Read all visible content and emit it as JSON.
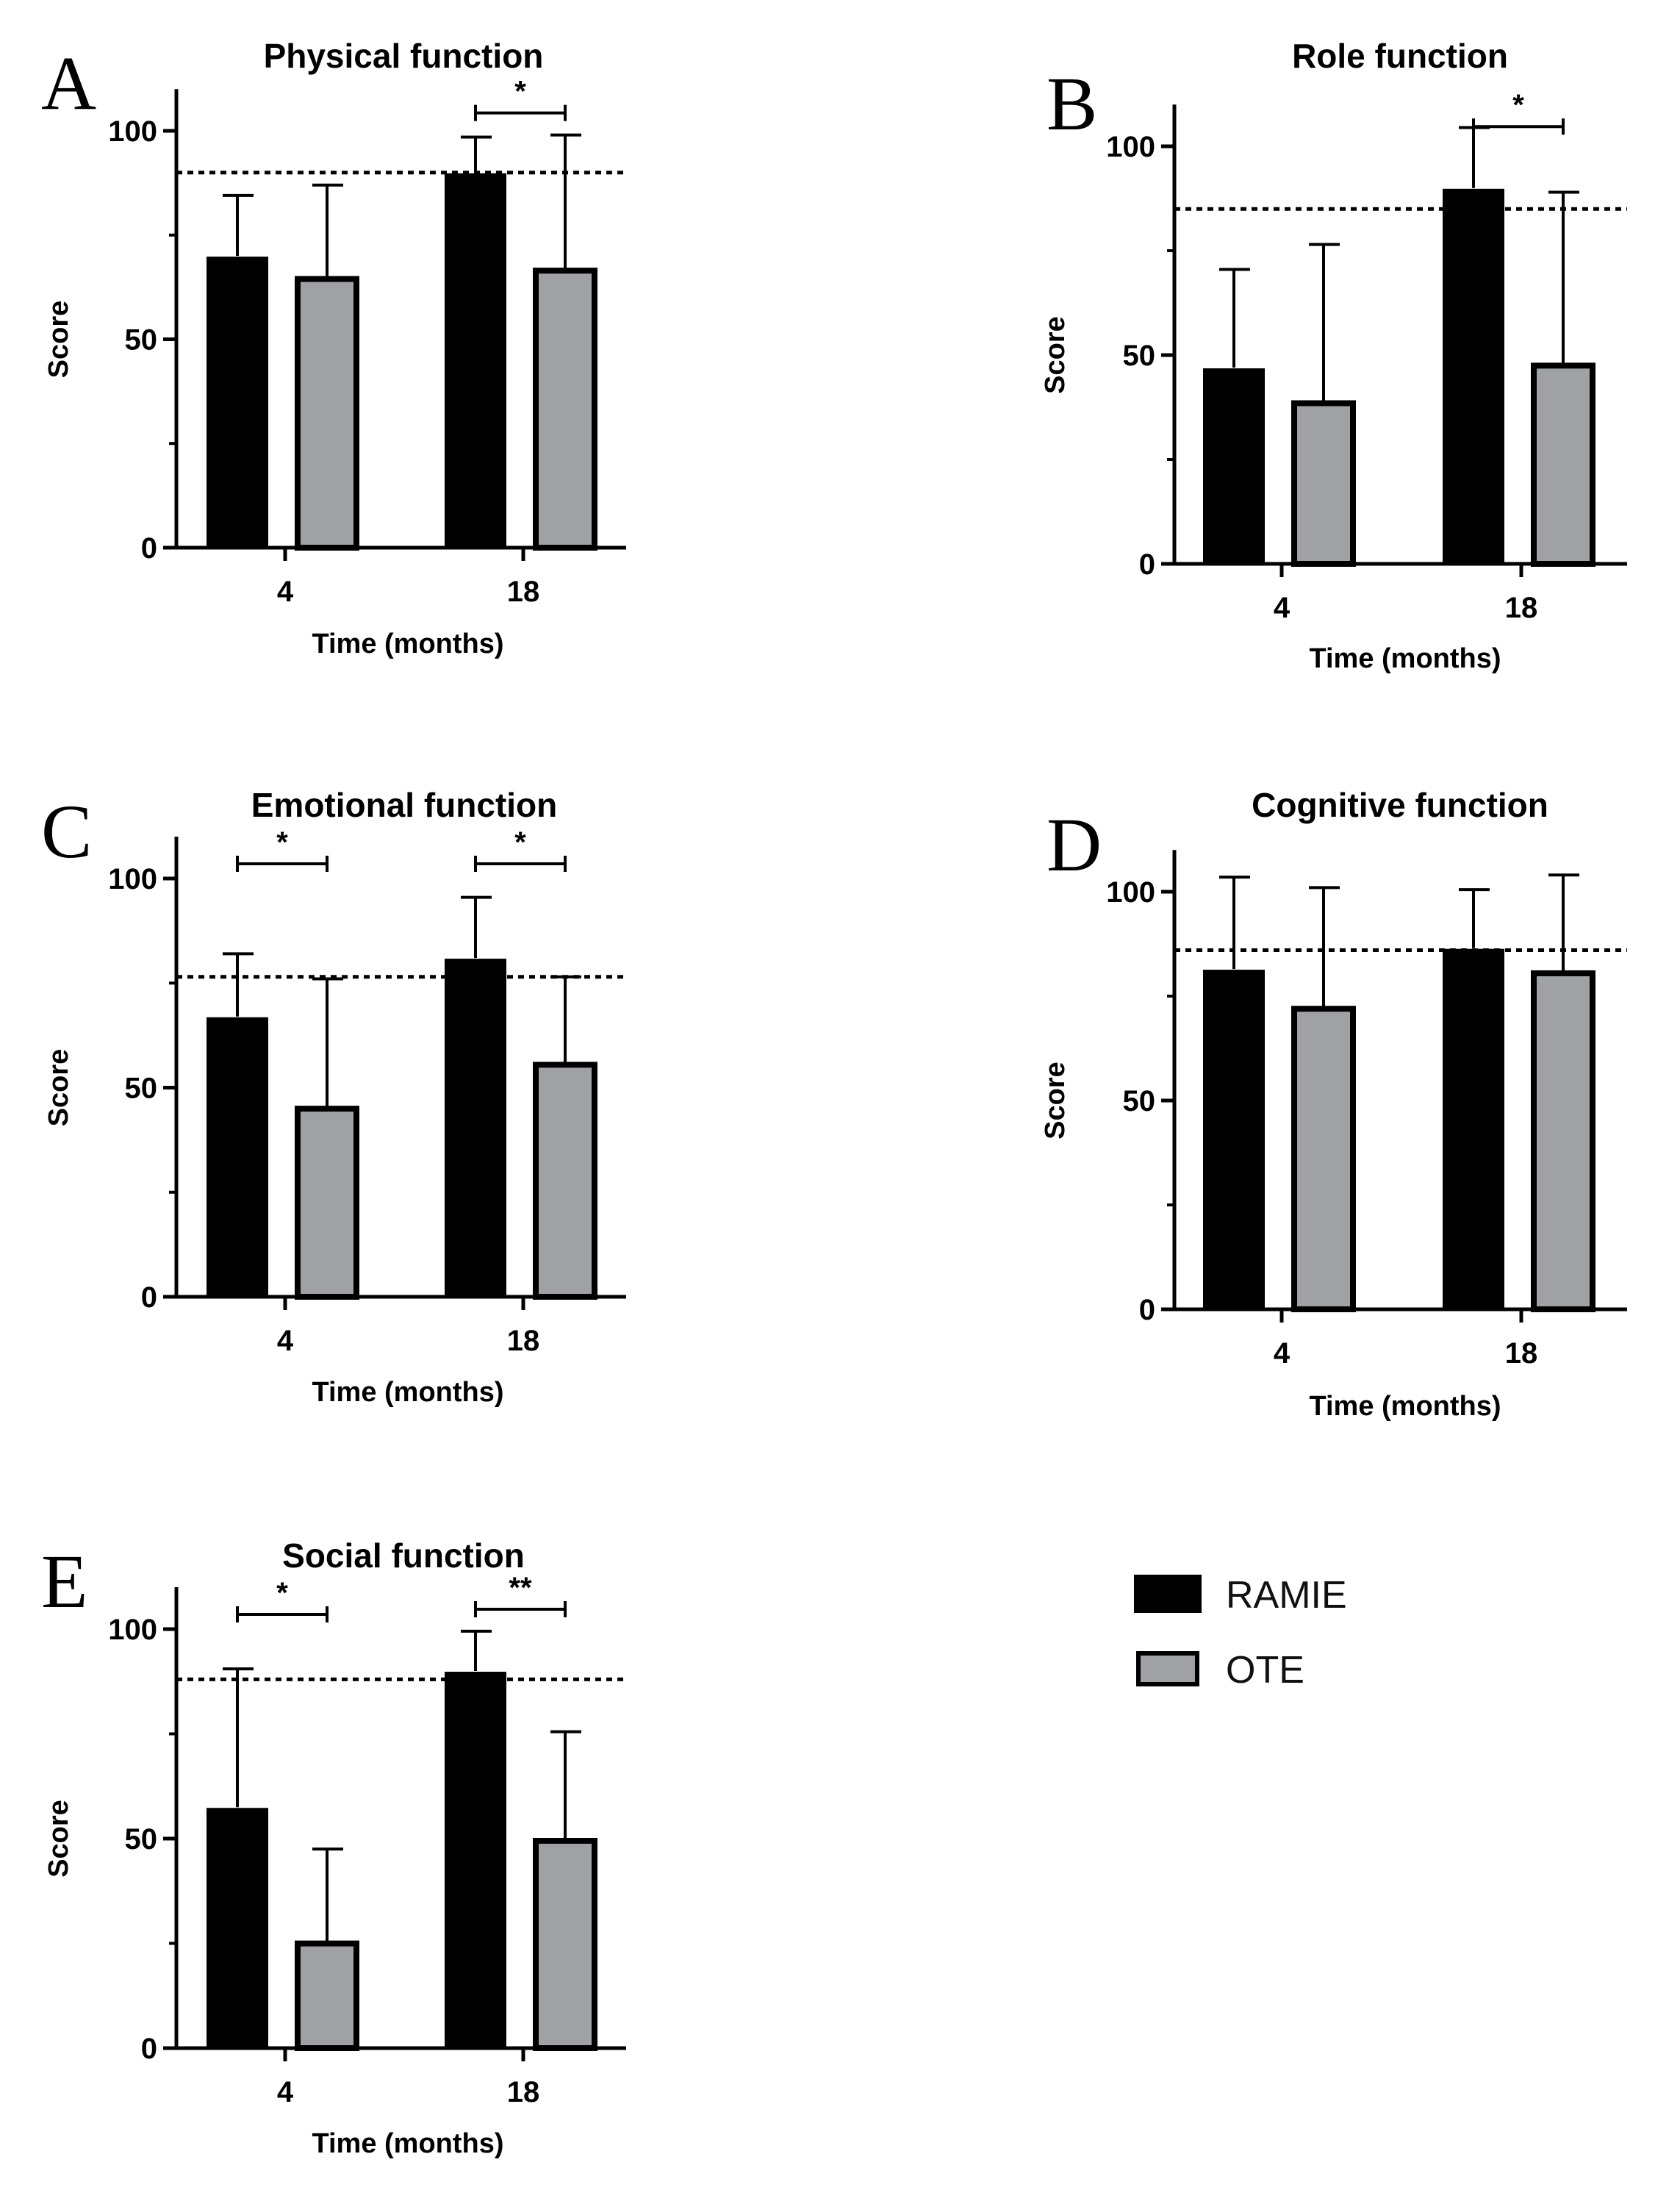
{
  "figure": {
    "legend": {
      "items": [
        {
          "label": "RAMIE",
          "color": "#000000"
        },
        {
          "label": "OTE",
          "color": "#a0a1a4"
        }
      ]
    }
  },
  "chart_data": [
    {
      "panel": "A",
      "type": "bar",
      "title": "Physical function",
      "xlabel": "Time (months)",
      "ylabel": "Score",
      "categories": [
        "4",
        "18"
      ],
      "ylim": [
        0,
        110
      ],
      "yticks": [
        0,
        50,
        100
      ],
      "reference_line": 90,
      "series": [
        {
          "name": "RAMIE",
          "color": "#000000",
          "values": [
            70,
            90
          ],
          "errors": [
            14.5,
            8.5
          ]
        },
        {
          "name": "OTE",
          "color": "#a0a1a4",
          "values": [
            65,
            67
          ],
          "errors": [
            22,
            32
          ]
        }
      ],
      "significance": [
        {
          "category": "18",
          "label": "*"
        }
      ]
    },
    {
      "panel": "B",
      "type": "bar",
      "title": "Role function",
      "xlabel": "Time (months)",
      "ylabel": "Score",
      "categories": [
        "4",
        "18"
      ],
      "ylim": [
        0,
        110
      ],
      "yticks": [
        0,
        50,
        100
      ],
      "reference_line": 85,
      "series": [
        {
          "name": "RAMIE",
          "color": "#000000",
          "values": [
            47,
            90
          ],
          "errors": [
            23.5,
            14.5
          ]
        },
        {
          "name": "OTE",
          "color": "#a0a1a4",
          "values": [
            39,
            48
          ],
          "errors": [
            37.5,
            41
          ]
        }
      ],
      "significance": [
        {
          "category": "18",
          "label": "*"
        }
      ]
    },
    {
      "panel": "C",
      "type": "bar",
      "title": "Emotional function",
      "xlabel": "Time (months)",
      "ylabel": "Score",
      "categories": [
        "4",
        "18"
      ],
      "ylim": [
        0,
        110
      ],
      "yticks": [
        0,
        50,
        100
      ],
      "reference_line": 76.5,
      "series": [
        {
          "name": "RAMIE",
          "color": "#000000",
          "values": [
            67,
            81
          ],
          "errors": [
            15,
            14.5
          ]
        },
        {
          "name": "OTE",
          "color": "#a0a1a4",
          "values": [
            45.5,
            56
          ],
          "errors": [
            30.5,
            20.5
          ]
        }
      ],
      "significance": [
        {
          "category": "4",
          "label": "*"
        },
        {
          "category": "18",
          "label": "*"
        }
      ]
    },
    {
      "panel": "D",
      "type": "bar",
      "title": "Cognitive function",
      "xlabel": "Time (months)",
      "ylabel": "Score",
      "categories": [
        "4",
        "18"
      ],
      "ylim": [
        0,
        110
      ],
      "yticks": [
        0,
        50,
        100
      ],
      "reference_line": 86,
      "series": [
        {
          "name": "RAMIE",
          "color": "#000000",
          "values": [
            81.5,
            86.5
          ],
          "errors": [
            22,
            14
          ]
        },
        {
          "name": "OTE",
          "color": "#a0a1a4",
          "values": [
            72.5,
            81
          ],
          "errors": [
            28.5,
            23
          ]
        }
      ],
      "significance": []
    },
    {
      "panel": "E",
      "type": "bar",
      "title": "Social function",
      "xlabel": "Time (months)",
      "ylabel": "Score",
      "categories": [
        "4",
        "18"
      ],
      "ylim": [
        0,
        110
      ],
      "yticks": [
        0,
        50,
        100
      ],
      "reference_line": 88,
      "series": [
        {
          "name": "RAMIE",
          "color": "#000000",
          "values": [
            57.5,
            90
          ],
          "errors": [
            33,
            9.5
          ]
        },
        {
          "name": "OTE",
          "color": "#a0a1a4",
          "values": [
            25.5,
            50
          ],
          "errors": [
            22,
            25.5
          ]
        }
      ],
      "significance": [
        {
          "category": "4",
          "label": "*"
        },
        {
          "category": "18",
          "label": "**"
        }
      ]
    }
  ]
}
